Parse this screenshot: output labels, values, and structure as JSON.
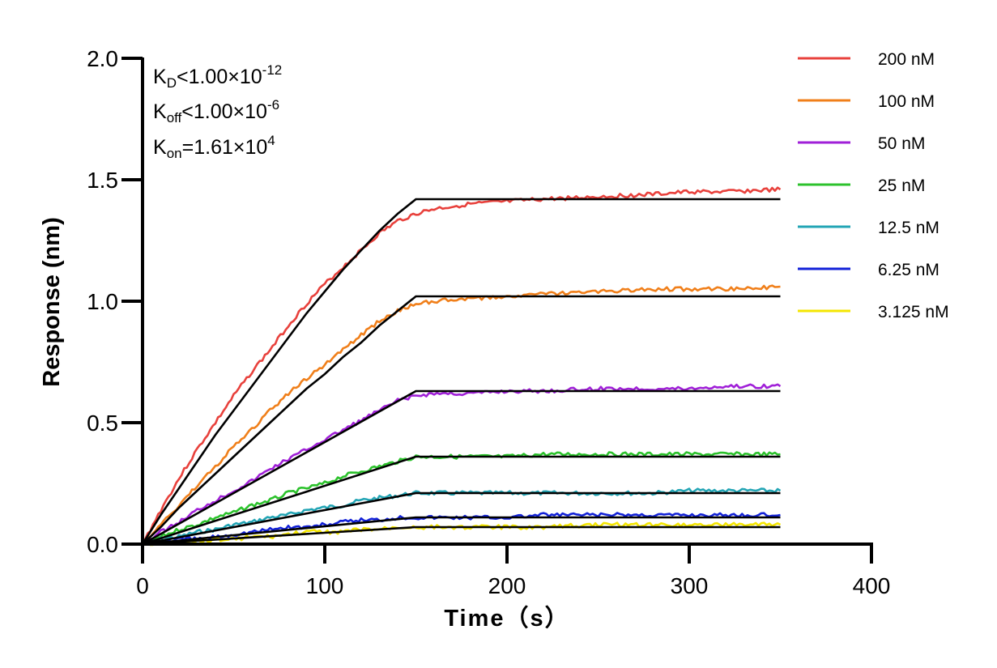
{
  "annotations": {
    "kd": {
      "base": "K",
      "sub": "D",
      "op": "<",
      "mantissa": "1.00×10",
      "exp": "-12"
    },
    "koff": {
      "base": "K",
      "sub": "off",
      "op": "<",
      "mantissa": "1.00×10",
      "exp": "-6"
    },
    "kon": {
      "base": "K",
      "sub": "on",
      "op": "=",
      "mantissa": "1.61×10",
      "exp": "4"
    }
  },
  "chart_data": {
    "type": "line",
    "title": "",
    "xlabel": "Time（s）",
    "ylabel": "Response (nm)",
    "xlim": [
      0,
      400
    ],
    "ylim": [
      0,
      2.0
    ],
    "x_ticks": [
      0,
      100,
      200,
      300,
      400
    ],
    "x_tick_labels": [
      "0",
      "100",
      "200",
      "300",
      "400"
    ],
    "y_ticks": [
      0,
      0.5,
      1.0,
      1.5,
      2.0
    ],
    "y_tick_labels": [
      "0.0",
      "0.5",
      "1.0",
      "1.5",
      "2.0"
    ],
    "grid": false,
    "legend_position": "right",
    "association_end": 150,
    "dissociation_end": 350,
    "series": [
      {
        "name": "200 nM",
        "color": "#e8413c",
        "x": [
          0,
          10,
          20,
          30,
          40,
          50,
          60,
          70,
          80,
          90,
          100,
          110,
          120,
          130,
          140,
          150,
          160,
          180,
          200,
          220,
          250,
          280,
          300,
          320,
          350
        ],
        "y": [
          0,
          0.14,
          0.27,
          0.39,
          0.5,
          0.61,
          0.71,
          0.8,
          0.9,
          0.99,
          1.07,
          1.14,
          1.21,
          1.28,
          1.33,
          1.36,
          1.38,
          1.4,
          1.41,
          1.42,
          1.43,
          1.44,
          1.45,
          1.45,
          1.46
        ]
      },
      {
        "name": "100 nM",
        "color": "#f07f1a",
        "x": [
          0,
          10,
          20,
          30,
          40,
          50,
          60,
          70,
          80,
          90,
          100,
          110,
          120,
          130,
          140,
          150,
          160,
          180,
          200,
          220,
          250,
          280,
          300,
          320,
          350
        ],
        "y": [
          0,
          0.08,
          0.16,
          0.24,
          0.32,
          0.4,
          0.47,
          0.55,
          0.62,
          0.68,
          0.74,
          0.8,
          0.86,
          0.92,
          0.96,
          0.99,
          1.0,
          1.01,
          1.02,
          1.03,
          1.04,
          1.05,
          1.05,
          1.05,
          1.06
        ]
      },
      {
        "name": "50 nM",
        "color": "#a020d8",
        "x": [
          0,
          10,
          20,
          30,
          40,
          50,
          60,
          70,
          80,
          90,
          100,
          110,
          120,
          130,
          140,
          150,
          160,
          180,
          200,
          220,
          250,
          280,
          300,
          320,
          350
        ],
        "y": [
          0,
          0.05,
          0.09,
          0.14,
          0.18,
          0.22,
          0.26,
          0.31,
          0.35,
          0.39,
          0.43,
          0.47,
          0.51,
          0.55,
          0.59,
          0.61,
          0.62,
          0.62,
          0.63,
          0.63,
          0.64,
          0.64,
          0.64,
          0.65,
          0.65
        ]
      },
      {
        "name": "25 nM",
        "color": "#2cc22c",
        "x": [
          0,
          10,
          20,
          30,
          40,
          50,
          60,
          70,
          80,
          90,
          100,
          110,
          120,
          130,
          140,
          150,
          160,
          180,
          200,
          220,
          250,
          280,
          300,
          320,
          350
        ],
        "y": [
          0,
          0.03,
          0.06,
          0.08,
          0.11,
          0.13,
          0.16,
          0.18,
          0.21,
          0.23,
          0.25,
          0.28,
          0.3,
          0.32,
          0.34,
          0.36,
          0.36,
          0.36,
          0.36,
          0.37,
          0.37,
          0.37,
          0.37,
          0.37,
          0.37
        ]
      },
      {
        "name": "12.5 nM",
        "color": "#23a5b5",
        "x": [
          0,
          10,
          20,
          30,
          40,
          50,
          60,
          70,
          80,
          90,
          100,
          110,
          120,
          130,
          140,
          150,
          160,
          180,
          200,
          220,
          250,
          280,
          300,
          320,
          350
        ],
        "y": [
          0,
          0.02,
          0.03,
          0.05,
          0.06,
          0.08,
          0.09,
          0.11,
          0.12,
          0.14,
          0.15,
          0.16,
          0.18,
          0.19,
          0.2,
          0.21,
          0.21,
          0.21,
          0.21,
          0.21,
          0.21,
          0.21,
          0.22,
          0.22,
          0.22
        ]
      },
      {
        "name": "6.25 nM",
        "color": "#1221d8",
        "x": [
          0,
          10,
          20,
          30,
          40,
          50,
          60,
          70,
          80,
          90,
          100,
          110,
          120,
          130,
          140,
          150,
          160,
          180,
          200,
          220,
          250,
          280,
          300,
          320,
          350
        ],
        "y": [
          0,
          0.01,
          0.02,
          0.02,
          0.03,
          0.04,
          0.05,
          0.06,
          0.07,
          0.07,
          0.08,
          0.09,
          0.1,
          0.1,
          0.11,
          0.11,
          0.11,
          0.11,
          0.11,
          0.12,
          0.12,
          0.12,
          0.12,
          0.12,
          0.12
        ]
      },
      {
        "name": "3.125 nM",
        "color": "#f4e600",
        "x": [
          0,
          10,
          20,
          30,
          40,
          50,
          60,
          70,
          80,
          90,
          100,
          110,
          120,
          130,
          140,
          150,
          160,
          180,
          200,
          220,
          250,
          280,
          300,
          320,
          350
        ],
        "y": [
          0,
          0.0,
          0.01,
          0.01,
          0.02,
          0.02,
          0.03,
          0.03,
          0.04,
          0.05,
          0.05,
          0.05,
          0.06,
          0.06,
          0.07,
          0.07,
          0.07,
          0.07,
          0.07,
          0.07,
          0.08,
          0.08,
          0.08,
          0.08,
          0.08
        ]
      }
    ],
    "fits": [
      {
        "x": [
          0,
          10,
          20,
          30,
          40,
          50,
          60,
          70,
          80,
          90,
          100,
          110,
          120,
          130,
          140,
          150,
          350
        ],
        "y": [
          0,
          0.12,
          0.23,
          0.34,
          0.45,
          0.55,
          0.65,
          0.75,
          0.85,
          0.95,
          1.04,
          1.13,
          1.21,
          1.29,
          1.36,
          1.42,
          1.42
        ]
      },
      {
        "x": [
          0,
          10,
          20,
          30,
          40,
          50,
          60,
          70,
          80,
          90,
          100,
          110,
          120,
          130,
          140,
          150,
          350
        ],
        "y": [
          0,
          0.07,
          0.15,
          0.22,
          0.29,
          0.36,
          0.43,
          0.5,
          0.57,
          0.64,
          0.7,
          0.77,
          0.83,
          0.9,
          0.96,
          1.02,
          1.02
        ]
      },
      {
        "x": [
          0,
          150,
          350
        ],
        "y": [
          0,
          0.63,
          0.63
        ]
      },
      {
        "x": [
          0,
          150,
          350
        ],
        "y": [
          0,
          0.36,
          0.36
        ]
      },
      {
        "x": [
          0,
          150,
          350
        ],
        "y": [
          0,
          0.21,
          0.21
        ]
      },
      {
        "x": [
          0,
          150,
          350
        ],
        "y": [
          0,
          0.11,
          0.11
        ]
      },
      {
        "x": [
          0,
          150,
          350
        ],
        "y": [
          0,
          0.07,
          0.07
        ]
      }
    ],
    "fit_color": "#000000"
  }
}
